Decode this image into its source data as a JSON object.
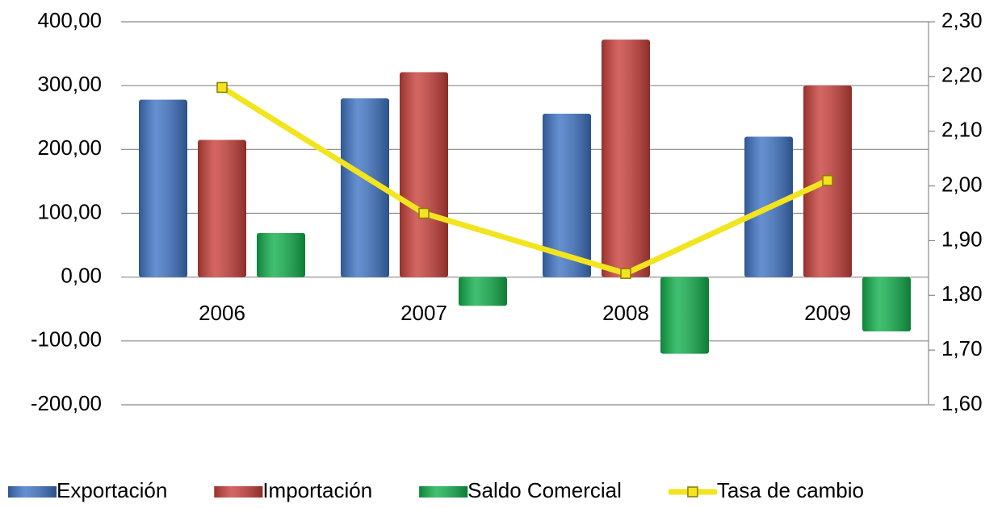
{
  "chart_data": {
    "type": "bar_line",
    "categories": [
      "2006",
      "2007",
      "2008",
      "2009"
    ],
    "series": [
      {
        "name": "Exportación",
        "color": "#3f74c4",
        "values": [
          278,
          280,
          256,
          220
        ]
      },
      {
        "name": "Importación",
        "color": "#c9403b",
        "values": [
          215,
          321,
          372,
          300
        ]
      },
      {
        "name": "Saldo Comercial",
        "color": "#12b04c",
        "values": [
          69,
          -45,
          -120,
          -85
        ]
      },
      {
        "name": "Tasa de cambio",
        "color": "#f2e41e",
        "axis": "y2",
        "type": "line",
        "values": [
          2.18,
          1.95,
          1.84,
          2.01
        ]
      }
    ],
    "ylim": [
      -200,
      400
    ],
    "yticks": [
      {
        "value": -200,
        "label": "-200,00"
      },
      {
        "value": -100,
        "label": "-100,00"
      },
      {
        "value": 0,
        "label": "0,00"
      },
      {
        "value": 100,
        "label": "100,00"
      },
      {
        "value": 200,
        "label": "200,00"
      },
      {
        "value": 300,
        "label": "300,00"
      },
      {
        "value": 400,
        "label": "400,00"
      }
    ],
    "y2lim": [
      1.6,
      2.3
    ],
    "y2ticks": [
      {
        "value": 1.6,
        "label": "1,60"
      },
      {
        "value": 1.7,
        "label": "1,70"
      },
      {
        "value": 1.8,
        "label": "1,80"
      },
      {
        "value": 1.9,
        "label": "1,90"
      },
      {
        "value": 2.0,
        "label": "2,00"
      },
      {
        "value": 2.1,
        "label": "2,10"
      },
      {
        "value": 2.2,
        "label": "2,20"
      },
      {
        "value": 2.3,
        "label": "2,30"
      }
    ],
    "grid": true,
    "legend": "bottom"
  }
}
